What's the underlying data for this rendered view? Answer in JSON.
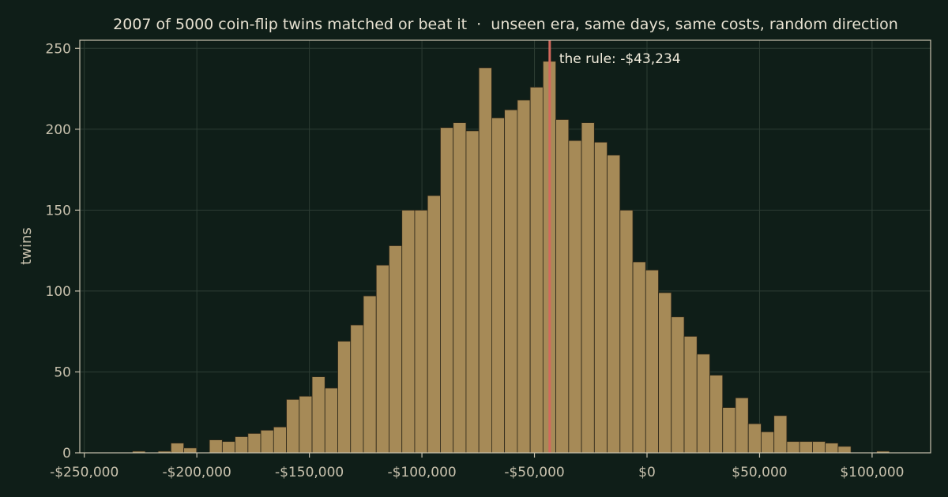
{
  "chart_data": {
    "type": "histogram",
    "title": "2007 of 5000 coin-flip twins matched or beat it  ·  unseen era, same days, same costs, random direction",
    "xlabel": "",
    "ylabel": "twins",
    "xlim": [
      -252000,
      126000
    ],
    "ylim": [
      0,
      255
    ],
    "x_ticks": [
      -250000,
      -200000,
      -150000,
      -100000,
      -50000,
      0,
      50000,
      100000
    ],
    "x_tick_labels": [
      "-$250,000",
      "-$200,000",
      "-$150,000",
      "-$100,000",
      "-$50,000",
      "$0",
      "$50,000",
      "$100,000"
    ],
    "y_ticks": [
      0,
      50,
      100,
      150,
      200,
      250
    ],
    "y_tick_labels": [
      "0",
      "50",
      "100",
      "150",
      "200",
      "250"
    ],
    "grid": true,
    "bin_width": 5700,
    "bin_starts": [
      -240000,
      -234300,
      -228600,
      -222900,
      -217200,
      -211500,
      -205800,
      -200100,
      -194400,
      -188700,
      -183000,
      -177300,
      -171600,
      -165900,
      -160200,
      -154500,
      -148800,
      -143100,
      -137400,
      -131700,
      -126000,
      -120300,
      -114600,
      -108900,
      -103200,
      -97500,
      -91800,
      -86100,
      -80400,
      -74700,
      -69000,
      -63300,
      -57600,
      -51900,
      -46200,
      -40500,
      -34800,
      -29100,
      -23400,
      -17700,
      -12000,
      -6300,
      -600,
      5100,
      10800,
      16500,
      22200,
      27900,
      33600,
      39300,
      45000,
      50700,
      56400,
      62100,
      67800,
      73500,
      79200,
      84900,
      90600,
      96300,
      102000
    ],
    "counts": [
      0,
      0,
      1,
      0,
      1,
      6,
      3,
      0,
      8,
      7,
      10,
      12,
      14,
      16,
      33,
      35,
      47,
      40,
      69,
      79,
      97,
      116,
      128,
      150,
      150,
      159,
      201,
      204,
      199,
      238,
      207,
      212,
      218,
      226,
      242,
      206,
      193,
      204,
      192,
      184,
      150,
      118,
      113,
      99,
      84,
      72,
      61,
      48,
      28,
      34,
      18,
      13,
      23,
      7,
      7,
      7,
      6,
      4,
      0,
      0,
      1
    ],
    "marker": {
      "value": -43234,
      "label": "the rule: -$43,234",
      "color": "#d2685c"
    },
    "bar_color": "#a68a57"
  }
}
